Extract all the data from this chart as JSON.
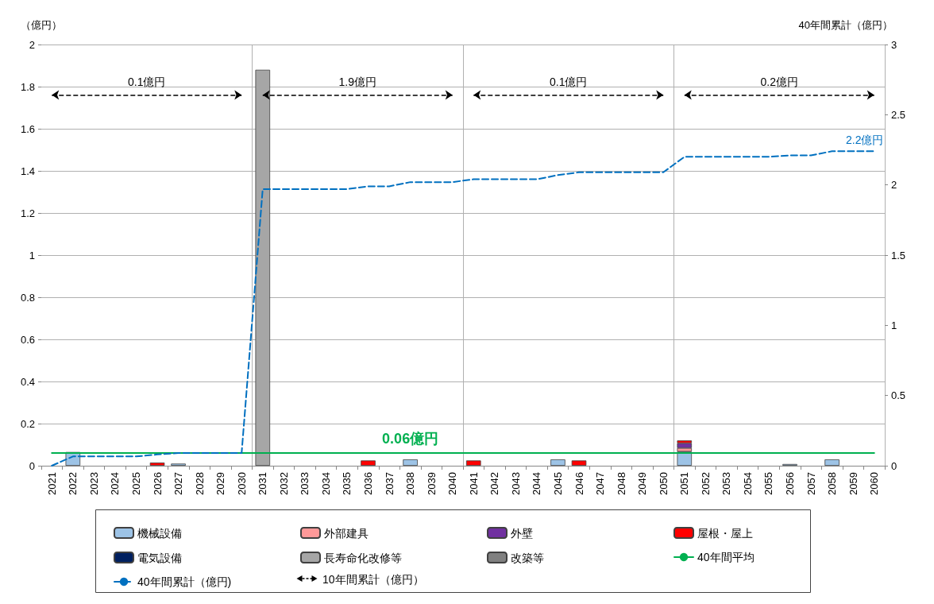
{
  "chart_data": {
    "type": "bar",
    "stacked": true,
    "ylabel": "（億円）",
    "y2label": "40年間累計（億円）",
    "categories": [
      "2021",
      "2022",
      "2023",
      "2024",
      "2025",
      "2026",
      "2027",
      "2028",
      "2029",
      "2030",
      "2031",
      "2032",
      "2033",
      "2034",
      "2035",
      "2036",
      "2037",
      "2038",
      "2039",
      "2040",
      "2041",
      "2042",
      "2043",
      "2044",
      "2045",
      "2046",
      "2047",
      "2048",
      "2049",
      "2050",
      "2051",
      "2052",
      "2053",
      "2054",
      "2055",
      "2056",
      "2057",
      "2058",
      "2059",
      "2060"
    ],
    "ylim": [
      0,
      2
    ],
    "yticks": [
      0,
      0.2,
      0.4,
      0.6,
      0.8,
      1,
      1.2,
      1.4,
      1.6,
      1.8,
      2
    ],
    "y2lim": [
      0,
      3
    ],
    "y2ticks": [
      0,
      0.5,
      1,
      1.5,
      2,
      2.5,
      3
    ],
    "grid": true,
    "legend": "bottom",
    "series": [
      {
        "name": "機械設備",
        "color": "#9dc3e6",
        "values": [
          null,
          0.065,
          null,
          null,
          null,
          null,
          0.01,
          null,
          null,
          null,
          null,
          null,
          null,
          null,
          null,
          null,
          null,
          0.03,
          null,
          null,
          null,
          null,
          null,
          null,
          0.03,
          null,
          null,
          null,
          null,
          null,
          0.067,
          null,
          null,
          null,
          null,
          0.008,
          null,
          0.03,
          null,
          null
        ]
      },
      {
        "name": "外部建具",
        "color": "#ff9999",
        "values": [
          null,
          null,
          null,
          null,
          null,
          null,
          null,
          null,
          null,
          null,
          null,
          null,
          null,
          null,
          null,
          null,
          null,
          null,
          null,
          null,
          null,
          null,
          null,
          null,
          null,
          null,
          null,
          null,
          null,
          null,
          0.017,
          null,
          null,
          null,
          null,
          null,
          null,
          null,
          null,
          null
        ]
      },
      {
        "name": "外壁",
        "color": "#7030a0",
        "values": [
          null,
          null,
          null,
          null,
          null,
          null,
          null,
          null,
          null,
          null,
          null,
          null,
          null,
          null,
          null,
          null,
          null,
          null,
          null,
          null,
          null,
          null,
          null,
          null,
          null,
          null,
          null,
          null,
          null,
          null,
          0.023,
          null,
          null,
          null,
          null,
          null,
          null,
          null,
          null,
          null
        ]
      },
      {
        "name": "屋根・屋上",
        "color": "#ff0000",
        "values": [
          null,
          null,
          null,
          null,
          null,
          0.015,
          null,
          null,
          null,
          null,
          null,
          null,
          null,
          null,
          null,
          0.025,
          null,
          null,
          null,
          null,
          0.025,
          null,
          null,
          null,
          null,
          0.025,
          null,
          null,
          null,
          null,
          0.013,
          null,
          null,
          null,
          null,
          null,
          null,
          null,
          null,
          null
        ]
      },
      {
        "name": "電気設備",
        "color": "#002060",
        "values": [
          null,
          null,
          null,
          null,
          null,
          null,
          null,
          null,
          null,
          null,
          null,
          null,
          null,
          null,
          null,
          null,
          null,
          null,
          null,
          null,
          null,
          null,
          null,
          null,
          null,
          null,
          null,
          null,
          null,
          null,
          null,
          null,
          null,
          null,
          null,
          null,
          null,
          null,
          null,
          null
        ]
      },
      {
        "name": "長寿命化改修等",
        "color": "#a6a6a6",
        "values": [
          null,
          null,
          null,
          null,
          null,
          null,
          null,
          null,
          null,
          null,
          1.88,
          null,
          null,
          null,
          null,
          null,
          null,
          null,
          null,
          null,
          null,
          null,
          null,
          null,
          null,
          null,
          null,
          null,
          null,
          null,
          null,
          null,
          null,
          null,
          null,
          null,
          null,
          null,
          null,
          null
        ]
      },
      {
        "name": "改築等",
        "color": "#808080",
        "values": [
          null,
          null,
          null,
          null,
          null,
          null,
          null,
          null,
          null,
          null,
          null,
          null,
          null,
          null,
          null,
          null,
          null,
          null,
          null,
          null,
          null,
          null,
          null,
          null,
          null,
          null,
          null,
          null,
          null,
          null,
          null,
          null,
          null,
          null,
          null,
          null,
          null,
          null,
          null,
          null
        ]
      },
      {
        "name": "40年間平均",
        "type": "line",
        "color": "#00b050",
        "line_style": "solid",
        "values": [
          0.06,
          0.06,
          0.06,
          0.06,
          0.06,
          0.06,
          0.06,
          0.06,
          0.06,
          0.06,
          0.06,
          0.06,
          0.06,
          0.06,
          0.06,
          0.06,
          0.06,
          0.06,
          0.06,
          0.06,
          0.06,
          0.06,
          0.06,
          0.06,
          0.06,
          0.06,
          0.06,
          0.06,
          0.06,
          0.06,
          0.06,
          0.06,
          0.06,
          0.06,
          0.06,
          0.06,
          0.06,
          0.06,
          0.06,
          0.06
        ],
        "value_labels": [
          null,
          null,
          null,
          null,
          null,
          null,
          null,
          null,
          null,
          null,
          null,
          null,
          null,
          null,
          null,
          null,
          null,
          "0.06億円",
          null,
          null,
          null,
          null,
          null,
          null,
          null,
          null,
          null,
          null,
          null,
          null,
          null,
          null,
          null,
          null,
          null,
          null,
          null,
          null,
          null,
          null
        ]
      },
      {
        "name": "40年間累計（億円)",
        "type": "line",
        "axis": "y2",
        "color": "#0070c0",
        "line_style": "dashed",
        "values": [
          0,
          0.066,
          0.066,
          0.066,
          0.066,
          0.08,
          0.09,
          0.09,
          0.09,
          0.09,
          1.97,
          1.97,
          1.97,
          1.97,
          1.97,
          1.99,
          1.99,
          2.02,
          2.02,
          2.02,
          2.04,
          2.04,
          2.04,
          2.04,
          2.07,
          2.09,
          2.09,
          2.09,
          2.09,
          2.09,
          2.2,
          2.2,
          2.2,
          2.2,
          2.2,
          2.21,
          2.21,
          2.24,
          2.24,
          2.24
        ],
        "value_labels": [
          null,
          null,
          null,
          null,
          null,
          null,
          null,
          null,
          null,
          null,
          null,
          null,
          null,
          null,
          null,
          null,
          null,
          null,
          null,
          null,
          null,
          null,
          null,
          null,
          null,
          null,
          null,
          null,
          null,
          null,
          null,
          null,
          null,
          null,
          null,
          null,
          null,
          null,
          null,
          "2.2億円"
        ]
      }
    ],
    "annotations": [
      "0.1億円",
      "1.9億円",
      "0.1億円",
      "0.2億円",
      "10年間累計（億円）"
    ]
  }
}
